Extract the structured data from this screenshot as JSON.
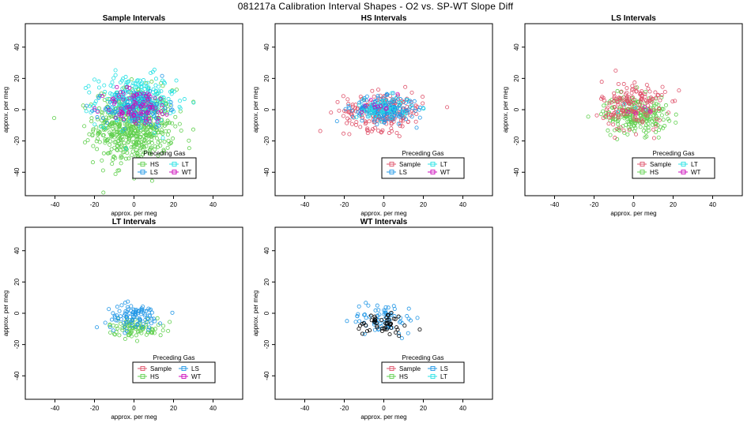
{
  "figure": {
    "title": "081217a   Calibration Interval Shapes - O2 vs. SP-WT Slope Diff"
  },
  "colors": {
    "Sample": "#DF536B",
    "HS": "#61D04F",
    "LS": "#2297E6",
    "LT": "#28E2E5",
    "WT": "#CD0BBC",
    "black": "#000000"
  },
  "chart_data": [
    {
      "type": "scatter",
      "title": "Sample Intervals",
      "xlabel": "approx. per meg",
      "ylabel": "approx. per meg",
      "xlim": [
        -55,
        55
      ],
      "ylim": [
        -55,
        55
      ],
      "xticks": [
        -40,
        -20,
        0,
        20,
        40
      ],
      "yticks": [
        -40,
        -20,
        0,
        20,
        40
      ],
      "legend": {
        "title": "Preceding Gas",
        "placement": "bottom-right",
        "entries": [
          "HS",
          "LT",
          "LS",
          "WT"
        ]
      },
      "series": [
        {
          "name": "HS",
          "color": "#61D04F",
          "center": [
            0,
            -11
          ],
          "spread": [
            10,
            12
          ],
          "n": 600
        },
        {
          "name": "LT",
          "color": "#28E2E5",
          "center": [
            1,
            6
          ],
          "spread": [
            10,
            8
          ],
          "n": 260
        },
        {
          "name": "LS",
          "color": "#2297E6",
          "center": [
            1,
            1
          ],
          "spread": [
            8,
            6
          ],
          "n": 140
        },
        {
          "name": "WT",
          "color": "#CD0BBC",
          "center": [
            2,
            2
          ],
          "spread": [
            9,
            6
          ],
          "n": 90
        }
      ]
    },
    {
      "type": "scatter",
      "title": "HS Intervals",
      "xlabel": "approx. per meg",
      "ylabel": "approx. per meg",
      "xlim": [
        -55,
        55
      ],
      "ylim": [
        -55,
        55
      ],
      "xticks": [
        -40,
        -20,
        0,
        20,
        40
      ],
      "yticks": [
        -40,
        -20,
        0,
        20,
        40
      ],
      "legend": {
        "title": "Preceding Gas",
        "placement": "bottom-right",
        "entries": [
          "Sample",
          "LT",
          "LS",
          "WT"
        ]
      },
      "series": [
        {
          "name": "Sample",
          "color": "#DF536B",
          "center": [
            0,
            -1
          ],
          "spread": [
            10,
            6
          ],
          "n": 220
        },
        {
          "name": "LS",
          "color": "#2297E6",
          "center": [
            0,
            0
          ],
          "spread": [
            8,
            4
          ],
          "n": 200
        },
        {
          "name": "LT",
          "color": "#28E2E5",
          "center": [
            0,
            1
          ],
          "spread": [
            7,
            4
          ],
          "n": 50
        },
        {
          "name": "WT",
          "color": "#CD0BBC",
          "center": [
            -2,
            0
          ],
          "spread": [
            6,
            4
          ],
          "n": 10
        }
      ]
    },
    {
      "type": "scatter",
      "title": "LS Intervals",
      "xlabel": "approx. per meg",
      "ylabel": "approx. per meg",
      "xlim": [
        -55,
        55
      ],
      "ylim": [
        -55,
        55
      ],
      "xticks": [
        -40,
        -20,
        0,
        20,
        40
      ],
      "yticks": [
        -40,
        -20,
        0,
        20,
        40
      ],
      "legend": {
        "title": "Preceding Gas",
        "placement": "bottom-right",
        "entries": [
          "Sample",
          "LT",
          "HS",
          "WT"
        ]
      },
      "series": [
        {
          "name": "HS",
          "color": "#61D04F",
          "center": [
            1,
            -3
          ],
          "spread": [
            8,
            6
          ],
          "n": 230
        },
        {
          "name": "Sample",
          "color": "#DF536B",
          "center": [
            0,
            3
          ],
          "spread": [
            8,
            8
          ],
          "n": 170
        },
        {
          "name": "LT",
          "color": "#28E2E5",
          "center": [
            0,
            0
          ],
          "spread": [
            5,
            4
          ],
          "n": 4
        },
        {
          "name": "WT",
          "color": "#CD0BBC",
          "center": [
            0,
            0
          ],
          "spread": [
            5,
            4
          ],
          "n": 4
        }
      ]
    },
    {
      "type": "scatter",
      "title": "LT Intervals",
      "xlabel": "approx. per meg",
      "ylabel": "approx. per meg",
      "xlim": [
        -55,
        55
      ],
      "ylim": [
        -55,
        55
      ],
      "xticks": [
        -40,
        -20,
        0,
        20,
        40
      ],
      "yticks": [
        -40,
        -20,
        0,
        20,
        40
      ],
      "legend": {
        "title": "Preceding Gas",
        "placement": "bottom-right",
        "entries": [
          "Sample",
          "LS",
          "HS",
          "WT"
        ]
      },
      "series": [
        {
          "name": "HS",
          "color": "#61D04F",
          "center": [
            1,
            -9
          ],
          "spread": [
            7,
            3
          ],
          "n": 90
        },
        {
          "name": "LS",
          "color": "#2297E6",
          "center": [
            0,
            -2
          ],
          "spread": [
            7,
            4
          ],
          "n": 100
        }
      ]
    },
    {
      "type": "scatter",
      "title": "WT Intervals",
      "xlabel": "approx. per meg",
      "ylabel": "approx. per meg",
      "xlim": [
        -55,
        55
      ],
      "ylim": [
        -55,
        55
      ],
      "xticks": [
        -40,
        -20,
        0,
        20,
        40
      ],
      "yticks": [
        -40,
        -20,
        0,
        20,
        40
      ],
      "legend": {
        "title": "Preceding Gas",
        "placement": "bottom-right",
        "entries": [
          "Sample",
          "LS",
          "HS",
          "LT"
        ]
      },
      "series": [
        {
          "name": "LS",
          "color": "#2297E6",
          "center": [
            0,
            -3
          ],
          "spread": [
            8,
            5
          ],
          "n": 70
        },
        {
          "name": "",
          "color": "#000000",
          "center": [
            0,
            -7
          ],
          "spread": [
            7,
            4
          ],
          "n": 50
        }
      ]
    }
  ]
}
